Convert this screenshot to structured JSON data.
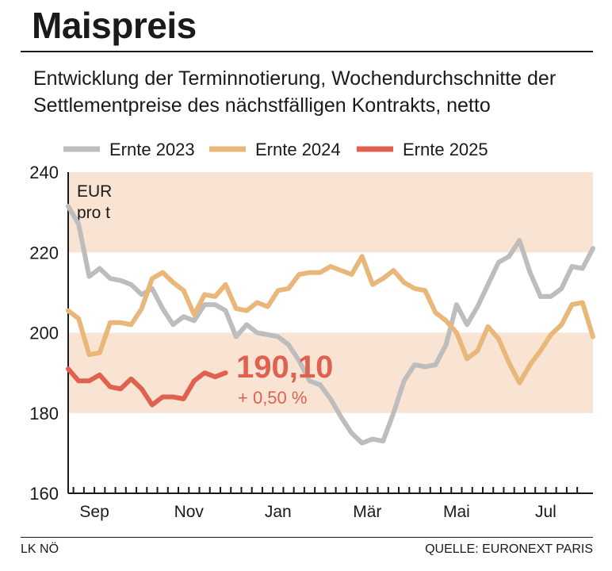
{
  "header": {
    "title": "Maispreis",
    "subtitle": "Entwicklung der Terminnotierung, Wochendurchschnitte der Settlementpreise des nächstfälligen Kontrakts, netto"
  },
  "footer": {
    "left": "LK NÖ",
    "right": "QUELLE: EURONEXT PARIS"
  },
  "colors": {
    "ernte_2023": "#bdbdbd",
    "ernte_2024": "#eab77a",
    "ernte_2025": "#e0614f",
    "band": "#f9e4d3",
    "axis": "#1a1a1a"
  },
  "chart_data": {
    "type": "line",
    "title": "Maispreis",
    "ylabel": "EUR pro t",
    "unit_line1": "EUR",
    "unit_line2": "pro t",
    "ylim": [
      160,
      240
    ],
    "yticks": [
      160,
      180,
      200,
      220,
      240
    ],
    "shaded_bands": [
      [
        180,
        200
      ],
      [
        220,
        240
      ]
    ],
    "x_week_range": [
      1,
      49
    ],
    "month_labels": [
      {
        "label": "Sep",
        "week": 3.5
      },
      {
        "label": "Nov",
        "week": 12.5
      },
      {
        "label": "Jan",
        "week": 21
      },
      {
        "label": "Mär",
        "week": 29.5
      },
      {
        "label": "Mai",
        "week": 38
      },
      {
        "label": "Jul",
        "week": 46.5
      }
    ],
    "legend_position": "top",
    "annotation": {
      "value": "190,10",
      "change": "+ 0,50 %"
    },
    "series": [
      {
        "name": "Ernte 2023",
        "values": [
          231.5,
          227,
          214,
          216,
          213.5,
          213,
          212,
          209.5,
          211,
          206,
          202,
          204,
          203,
          207,
          207,
          205.5,
          199,
          202,
          200,
          199.5,
          199,
          197,
          193,
          188,
          187,
          183.5,
          179,
          175,
          172.5,
          173.5,
          173,
          180,
          188,
          192,
          191.5,
          192,
          197,
          207,
          202,
          206.5,
          212,
          217.5,
          219,
          223,
          215,
          209,
          209,
          211,
          216.5,
          216,
          221
        ]
      },
      {
        "name": "Ernte 2024",
        "values": [
          205.5,
          203.5,
          194.5,
          195,
          202.5,
          202.5,
          202,
          206,
          213.5,
          215,
          212.5,
          210.5,
          204.5,
          209.5,
          209,
          212,
          206,
          205.5,
          207.5,
          206.5,
          210.5,
          211,
          214.5,
          215,
          215,
          216.5,
          215.5,
          214.5,
          219,
          212,
          213.5,
          215.5,
          212.5,
          211,
          210.5,
          205,
          203,
          200,
          193.5,
          195.5,
          201.5,
          198.5,
          192.5,
          187.5,
          192,
          195.5,
          199.5,
          202,
          207,
          207.5,
          199
        ]
      },
      {
        "name": "Ernte 2025",
        "values": [
          191,
          188,
          188,
          189.5,
          186.5,
          186,
          188.5,
          186,
          182,
          184,
          184,
          183.5,
          188,
          190,
          189,
          190
        ]
      }
    ]
  }
}
